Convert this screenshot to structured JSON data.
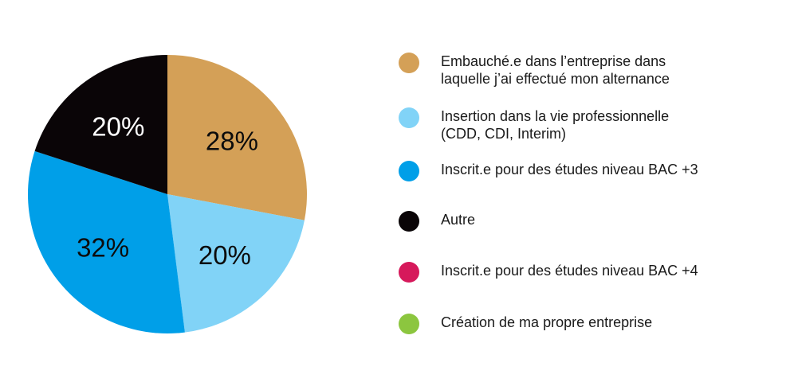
{
  "chart_data": {
    "type": "pie",
    "title": "",
    "slices": [
      {
        "label": "Embauché.e dans l’entreprise dans\nlaquelle j’ai effectué mon alternance",
        "value": 28,
        "display": "28%",
        "color": "#d4a057",
        "text_color": "#0c0c0c"
      },
      {
        "label": "Insertion dans la vie professionnelle\n(CDD, CDI, Interim)",
        "value": 20,
        "display": "20%",
        "color": "#81d3f7",
        "text_color": "#0c0c0c"
      },
      {
        "label": "Inscrit.e pour des études niveau BAC +3",
        "value": 32,
        "display": "32%",
        "color": "#009fe8",
        "text_color": "#0c0c0c"
      },
      {
        "label": "Autre",
        "value": 20,
        "display": "20%",
        "color": "#0a0507",
        "text_color": "#ffffff"
      },
      {
        "label": "Inscrit.e pour des études niveau BAC +4",
        "value": 0,
        "display": "",
        "color": "#d6195b",
        "text_color": "#0c0c0c"
      },
      {
        "label": "Création de ma propre entreprise",
        "value": 0,
        "display": "",
        "color": "#8cc63f",
        "text_color": "#0c0c0c"
      }
    ],
    "legend_position": "right",
    "start_angle": "top",
    "direction": "clockwise"
  }
}
